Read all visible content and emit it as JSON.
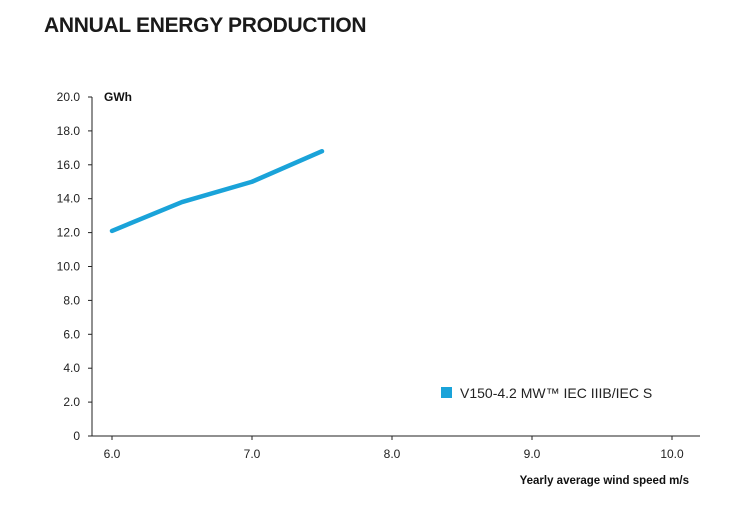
{
  "chart_data": {
    "type": "line",
    "title": "ANNUAL ENERGY PRODUCTION",
    "ylabel": "GWh",
    "xlabel": "Yearly average wind speed m/s",
    "ylim": [
      0,
      20
    ],
    "xlim": [
      6.0,
      10.0
    ],
    "yticks": [
      "0",
      "2.0",
      "4.0",
      "6.0",
      "8.0",
      "10.0",
      "12.0",
      "14.0",
      "16.0",
      "18.0",
      "20.0"
    ],
    "xticks": [
      "6.0",
      "7.0",
      "8.0",
      "9.0",
      "10.0"
    ],
    "legend_position": "bottom-right",
    "grid": false,
    "series": [
      {
        "name": "V150-4.2 MW™ IEC IIIB/IEC S",
        "color": "#1aa3d9",
        "x": [
          6.0,
          6.5,
          7.0,
          7.5
        ],
        "y": [
          12.1,
          13.8,
          15.0,
          16.8
        ]
      }
    ]
  }
}
